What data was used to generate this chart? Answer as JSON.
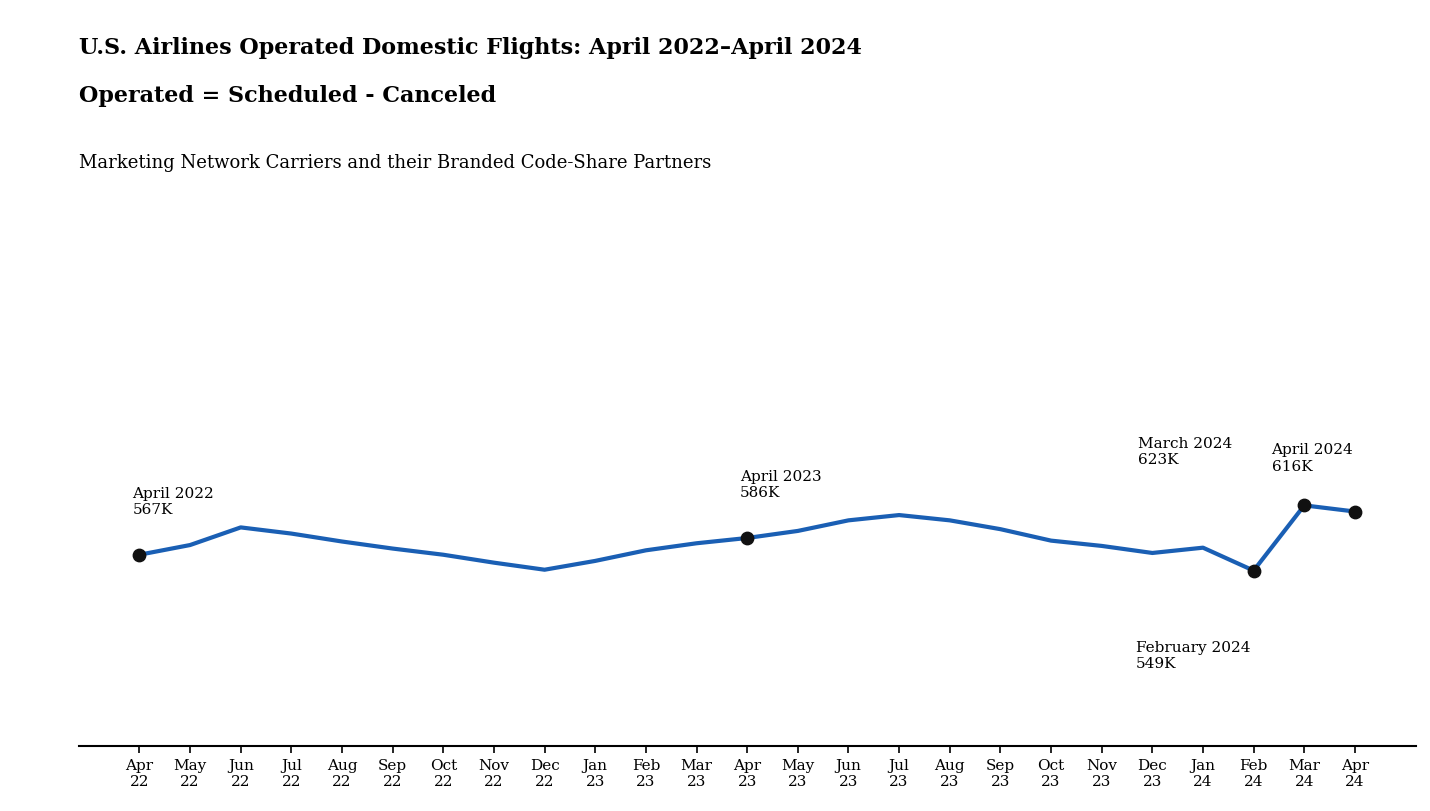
{
  "title_line1": "U.S. Airlines Operated Domestic Flights: April 2022–April 2024",
  "title_line2": "Operated = Scheduled - Canceled",
  "subtitle": "Marketing Network Carriers and their Branded Code-Share Partners",
  "x_labels_line1": [
    "Apr",
    "May",
    "Jun",
    "Jul",
    "Aug",
    "Sep",
    "Oct",
    "Nov",
    "Dec",
    "Jan",
    "Feb",
    "Mar",
    "Apr",
    "May",
    "Jun",
    "Jul",
    "Aug",
    "Sep",
    "Oct",
    "Nov",
    "Dec",
    "Jan",
    "Feb",
    "Mar",
    "Apr"
  ],
  "x_labels_line2": [
    "22",
    "22",
    "22",
    "22",
    "22",
    "22",
    "22",
    "22",
    "22",
    "23",
    "23",
    "23",
    "23",
    "23",
    "23",
    "23",
    "23",
    "23",
    "23",
    "23",
    "23",
    "24",
    "24",
    "24",
    "24"
  ],
  "values": [
    567,
    578,
    598,
    591,
    582,
    574,
    567,
    558,
    550,
    560,
    572,
    580,
    586,
    594,
    606,
    612,
    606,
    596,
    583,
    577,
    569,
    575,
    549,
    623,
    616
  ],
  "line_color": "#1a5fb4",
  "line_width": 3.0,
  "dot_color": "#111111",
  "dot_size": 80,
  "annotated_indices": [
    0,
    12,
    22,
    23,
    24
  ],
  "background_color": "#ffffff",
  "title_fontsize": 16,
  "subtitle_fontsize": 13,
  "tick_fontsize": 11,
  "annotation_fontsize": 11,
  "ylim_min": 350,
  "ylim_max": 700
}
